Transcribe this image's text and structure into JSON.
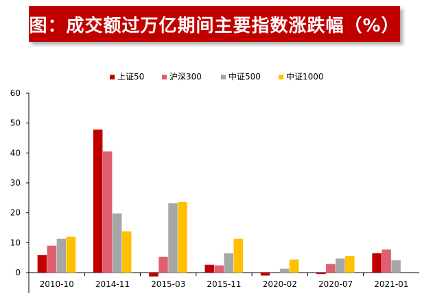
{
  "title": "图：成交额过万亿期间主要指数涨跌幅（%）",
  "chart_data": {
    "type": "bar",
    "categories": [
      "2010-10",
      "2014-11",
      "2015-03",
      "2015-11",
      "2020-02",
      "2020-07",
      "2021-01"
    ],
    "series": [
      {
        "name": "上证50",
        "color": "#c00000",
        "values": [
          5.9,
          47.8,
          -1.3,
          2.6,
          -1.0,
          -0.5,
          6.5
        ]
      },
      {
        "name": "沪深300",
        "color": "#e06070",
        "values": [
          9.0,
          40.5,
          5.3,
          2.4,
          0.0,
          2.9,
          7.7
        ]
      },
      {
        "name": "中证500",
        "color": "#a6a6a6",
        "values": [
          11.3,
          19.8,
          23.2,
          6.5,
          1.3,
          4.7,
          4.1
        ]
      },
      {
        "name": "中证1000",
        "color": "#ffc000",
        "values": [
          12.0,
          13.8,
          23.6,
          11.3,
          4.4,
          5.5,
          0.0
        ]
      }
    ],
    "yticks": [
      "0",
      "10",
      "20",
      "30",
      "40",
      "50",
      "60"
    ],
    "ylim": [
      0,
      60
    ],
    "grid": false,
    "legend_position": "top"
  }
}
